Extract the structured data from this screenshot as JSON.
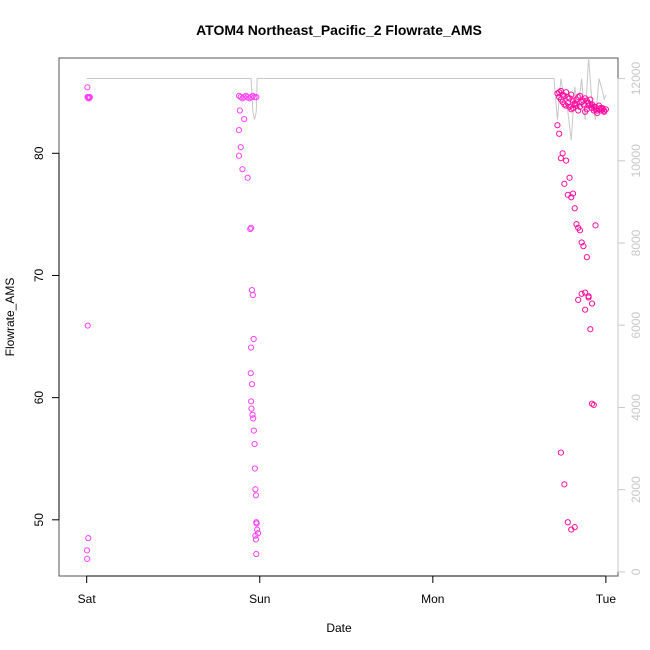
{
  "chart_data": {
    "type": "scatter",
    "title": "ATOM4 Northeast_Pacific_2 Flowrate_AMS",
    "xlabel": "Date",
    "ylabel": "Flowrate_AMS",
    "x_type": "date",
    "x_ticks": [
      {
        "value": 0,
        "label": "Sat"
      },
      {
        "value": 1,
        "label": "Sun"
      },
      {
        "value": 2,
        "label": "Mon"
      },
      {
        "value": 3,
        "label": "Tue"
      }
    ],
    "xlim": [
      -0.16,
      3.07
    ],
    "ylim": [
      45.4,
      87.8
    ],
    "y_ticks": [
      50,
      60,
      70,
      80
    ],
    "y2lim": [
      -100,
      12500
    ],
    "y2_ticks": [
      0,
      2000,
      4000,
      6000,
      8000,
      10000,
      12000
    ],
    "grid": false,
    "colors": {
      "points": "#ff0ea0",
      "points_alt": "#ff40ff",
      "line": "#c8c8c8",
      "frame": "#555555"
    },
    "series": [
      {
        "axis": "left",
        "style": "points",
        "x": [
          0.005,
          0.008,
          0.01,
          0.012,
          0.014,
          0.016,
          0.018,
          0.004,
          0.006,
          0.009,
          0.002,
          0.003,
          0.88,
          0.89,
          0.9,
          0.91,
          0.92,
          0.93,
          0.94,
          0.95,
          0.96,
          0.97,
          0.98,
          0.89,
          0.88,
          0.9,
          0.91,
          0.88,
          0.885,
          0.93,
          0.945,
          0.95,
          0.955,
          0.96,
          0.965,
          0.95,
          0.948,
          0.955,
          0.95,
          0.952,
          0.958,
          0.962,
          0.966,
          0.97,
          0.972,
          0.975,
          0.978,
          0.98,
          0.982,
          0.985,
          0.99,
          0.975,
          0.978,
          0.98,
          2.72,
          2.73,
          2.74,
          2.75,
          2.76,
          2.77,
          2.78,
          2.79,
          2.8,
          2.81,
          2.82,
          2.83,
          2.84,
          2.85,
          2.86,
          2.87,
          2.88,
          2.89,
          2.9,
          2.91,
          2.92,
          2.93,
          2.94,
          2.95,
          2.96,
          2.97,
          2.98,
          2.99,
          3.0,
          2.73,
          2.74,
          2.75,
          2.76,
          2.77,
          2.78,
          2.79,
          2.8,
          2.81,
          2.82,
          2.83,
          2.84,
          2.85,
          2.86,
          2.87,
          2.88,
          2.89,
          2.9,
          2.91,
          2.92,
          2.93,
          2.94,
          2.95,
          2.96,
          2.97,
          2.98,
          2.99,
          2.72,
          2.74,
          2.76,
          2.78,
          2.8,
          2.82,
          2.84,
          2.86,
          2.88,
          2.9,
          2.92,
          2.73,
          2.75,
          2.77,
          2.79,
          2.81,
          2.83,
          2.85,
          2.87,
          2.89,
          2.91,
          2.93,
          2.74,
          2.76,
          2.78,
          2.8,
          2.82,
          2.84,
          2.86,
          2.88,
          2.9,
          2.92,
          2.94
        ],
        "y": [
          84.6,
          84.6,
          84.5,
          84.6,
          84.5,
          84.6,
          84.6,
          85.4,
          65.9,
          48.5,
          47.5,
          46.8,
          84.7,
          84.6,
          84.5,
          84.6,
          84.7,
          84.6,
          84.5,
          84.6,
          84.7,
          84.6,
          84.6,
          80.5,
          79.8,
          78.7,
          82.8,
          81.9,
          83.5,
          78.0,
          73.8,
          73.9,
          68.8,
          68.4,
          64.8,
          64.1,
          62.0,
          61.1,
          59.7,
          59.1,
          58.6,
          58.3,
          57.3,
          56.2,
          54.2,
          52.5,
          52.0,
          49.8,
          49.7,
          49.2,
          48.9,
          48.7,
          48.4,
          47.2,
          84.9,
          85.0,
          85.1,
          84.8,
          84.7,
          85.0,
          84.6,
          84.5,
          84.8,
          84.3,
          84.1,
          84.4,
          84.6,
          84.7,
          84.2,
          84.0,
          84.5,
          84.3,
          84.1,
          84.4,
          84.0,
          83.8,
          83.6,
          83.5,
          83.9,
          83.7,
          83.6,
          83.5,
          83.6,
          84.6,
          84.4,
          84.2,
          84.0,
          83.9,
          84.1,
          83.8,
          83.6,
          83.7,
          84.0,
          83.9,
          83.5,
          83.8,
          84.2,
          84.3,
          83.4,
          83.6,
          83.9,
          84.0,
          83.7,
          83.5,
          83.8,
          83.3,
          83.6,
          83.5,
          83.7,
          83.4,
          82.3,
          79.6,
          77.5,
          76.6,
          76.4,
          75.5,
          73.9,
          72.7,
          68.6,
          68.3,
          67.7,
          81.6,
          80.0,
          79.4,
          78.0,
          76.7,
          74.2,
          73.7,
          72.4,
          71.5,
          65.6,
          59.4,
          55.5,
          52.9,
          49.8,
          49.2,
          49.4,
          68.0,
          68.5,
          67.2,
          68.2,
          59.5,
          74.1
        ]
      },
      {
        "axis": "right",
        "style": "line",
        "x": [
          0.0,
          0.02,
          0.05,
          0.5,
          0.86,
          0.88,
          0.895,
          0.905,
          0.92,
          0.935,
          0.95,
          0.96,
          0.97,
          0.98,
          0.985,
          0.99,
          0.995,
          1.0,
          2.7,
          2.72,
          2.74,
          2.76,
          2.78,
          2.8,
          2.82,
          2.84,
          2.86,
          2.88,
          2.9,
          2.92,
          2.94,
          2.96,
          2.98,
          2.99,
          3.0
        ],
        "y": [
          12000,
          12000,
          12000,
          12000,
          12000,
          12000,
          12000,
          12000,
          12000,
          12000,
          12000,
          11200,
          11000,
          11200,
          12000,
          12000,
          12000,
          12000,
          12000,
          11000,
          12000,
          11500,
          11200,
          10500,
          11800,
          11300,
          12000,
          11000,
          12500,
          11400,
          11000,
          12000,
          11700,
          11500,
          11600
        ]
      }
    ]
  }
}
